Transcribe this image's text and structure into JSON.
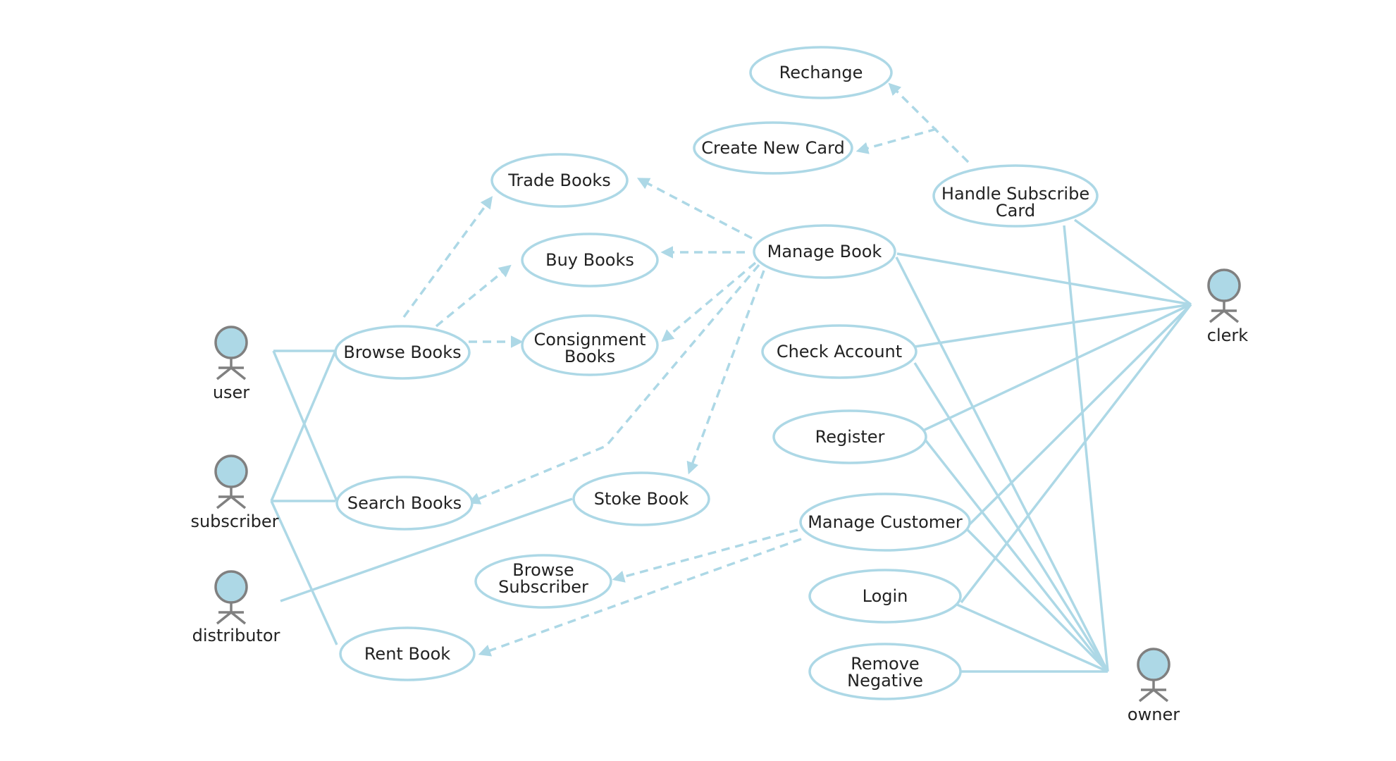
{
  "diagram": {
    "type": "use-case",
    "colors": {
      "line": "#add8e6",
      "actor_fill": "#add8e6",
      "actor_stroke": "#808080",
      "text": "#222222"
    },
    "actors": {
      "user": "user",
      "subscriber": "subscriber",
      "distributor": "distributor",
      "clerk": "clerk",
      "owner": "owner"
    },
    "use_cases": {
      "rechange": [
        "Rechange"
      ],
      "create_new_card": [
        "Create New Card"
      ],
      "handle_subscribe_card": [
        "Handle Subscribe",
        "Card"
      ],
      "trade_books": [
        "Trade Books"
      ],
      "buy_books": [
        "Buy Books"
      ],
      "manage_book": [
        "Manage Book"
      ],
      "browse_books": [
        "Browse Books"
      ],
      "consignment_books": [
        "Consignment",
        "Books"
      ],
      "check_account": [
        "Check Account"
      ],
      "register": [
        "Register"
      ],
      "search_books": [
        "Search Books"
      ],
      "stoke_book": [
        "Stoke Book"
      ],
      "manage_customer": [
        "Manage Customer"
      ],
      "browse_subscriber": [
        "Browse",
        "Subscriber"
      ],
      "login": [
        "Login"
      ],
      "rent_book": [
        "Rent Book"
      ],
      "remove_negative": [
        "Remove",
        "Negative"
      ]
    },
    "associations": [
      [
        "user",
        "browse_books"
      ],
      [
        "user",
        "search_books"
      ],
      [
        "subscriber",
        "browse_books"
      ],
      [
        "subscriber",
        "search_books"
      ],
      [
        "subscriber",
        "rent_book"
      ],
      [
        "distributor",
        "stoke_book"
      ],
      [
        "clerk",
        "handle_subscribe_card"
      ],
      [
        "clerk",
        "manage_book"
      ],
      [
        "clerk",
        "check_account"
      ],
      [
        "clerk",
        "register"
      ],
      [
        "clerk",
        "manage_customer"
      ],
      [
        "clerk",
        "login"
      ],
      [
        "owner",
        "handle_subscribe_card"
      ],
      [
        "owner",
        "manage_book"
      ],
      [
        "owner",
        "check_account"
      ],
      [
        "owner",
        "register"
      ],
      [
        "owner",
        "manage_customer"
      ],
      [
        "owner",
        "login"
      ],
      [
        "owner",
        "remove_negative"
      ]
    ],
    "dependencies": [
      [
        "handle_subscribe_card",
        "rechange"
      ],
      [
        "handle_subscribe_card",
        "create_new_card"
      ],
      [
        "browse_books",
        "trade_books"
      ],
      [
        "browse_books",
        "buy_books"
      ],
      [
        "browse_books",
        "consignment_books"
      ],
      [
        "manage_book",
        "trade_books"
      ],
      [
        "manage_book",
        "buy_books"
      ],
      [
        "manage_book",
        "consignment_books"
      ],
      [
        "manage_book",
        "search_books"
      ],
      [
        "manage_book",
        "stoke_book"
      ],
      [
        "manage_customer",
        "browse_subscriber"
      ],
      [
        "manage_customer",
        "rent_book"
      ]
    ]
  }
}
